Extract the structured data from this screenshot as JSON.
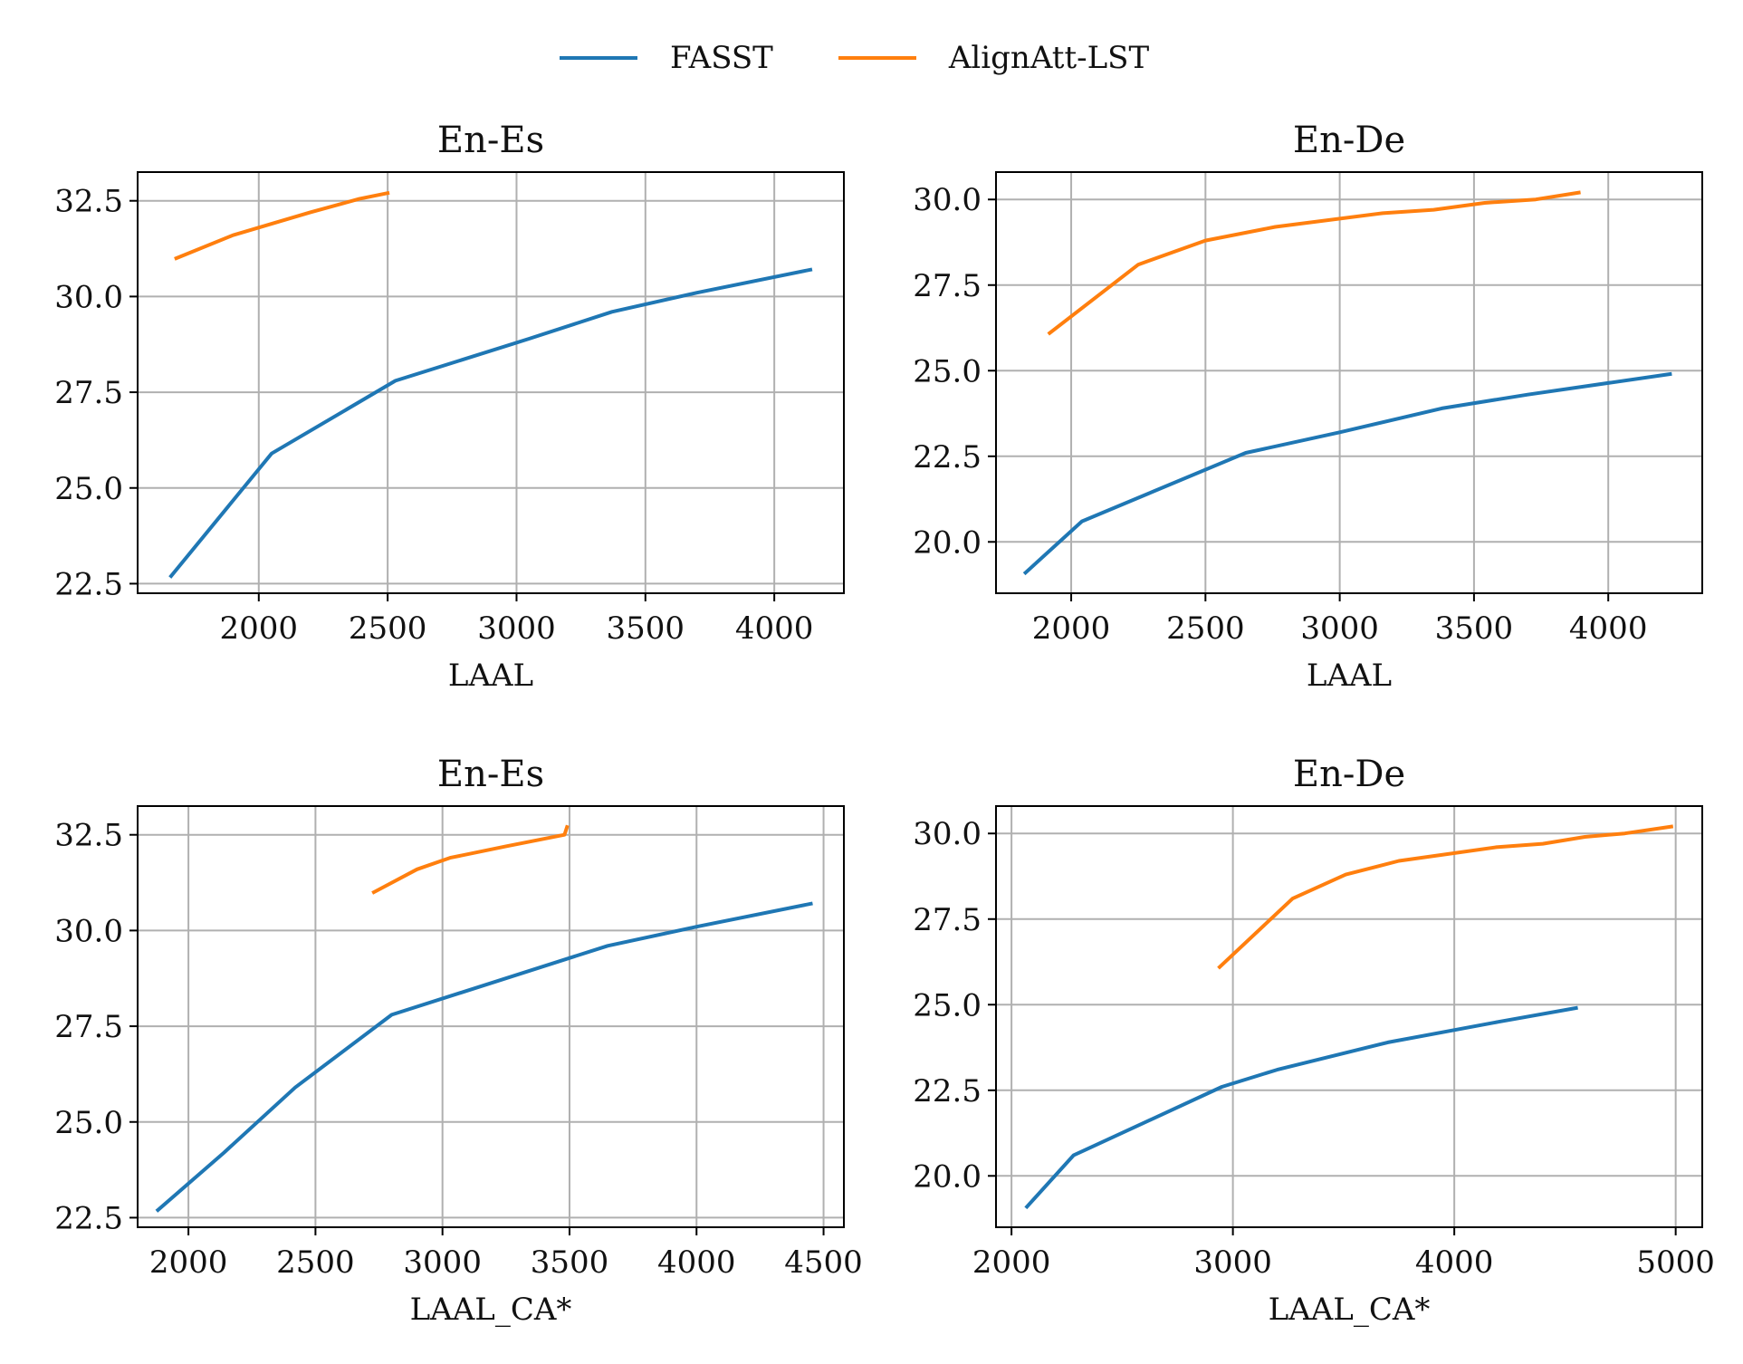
{
  "legend": {
    "fasst_label": "FASST",
    "alignatt_label": "AlignAtt-LST",
    "fasst_color": "#1f77b4",
    "alignatt_color": "#ff7f0e"
  },
  "chart_data": [
    {
      "type": "line",
      "title": "En-Es",
      "xlabel": "LAAL",
      "ylabel": "",
      "xlim": [
        1530,
        4270
      ],
      "ylim": [
        22.25,
        33.25
      ],
      "xticks": [
        2000,
        2500,
        3000,
        3500,
        4000
      ],
      "yticks": [
        22.5,
        25.0,
        27.5,
        30.0,
        32.5
      ],
      "grid": true,
      "series": [
        {
          "name": "FASST",
          "color": "#1f77b4",
          "x": [
            1660,
            2050,
            2530,
            3050,
            3370,
            3700,
            4140
          ],
          "y": [
            22.7,
            25.9,
            27.8,
            28.9,
            29.6,
            30.1,
            30.7
          ]
        },
        {
          "name": "AlignAtt-LST",
          "color": "#ff7f0e",
          "x": [
            1680,
            1900,
            2050,
            2200,
            2390,
            2500
          ],
          "y": [
            31.0,
            31.6,
            31.9,
            32.2,
            32.55,
            32.7
          ]
        }
      ]
    },
    {
      "type": "line",
      "title": "En-De",
      "xlabel": "LAAL",
      "ylabel": "",
      "xlim": [
        1720,
        4350
      ],
      "ylim": [
        18.5,
        30.8
      ],
      "xticks": [
        2000,
        2500,
        3000,
        3500,
        4000
      ],
      "yticks": [
        20.0,
        22.5,
        25.0,
        27.5,
        30.0
      ],
      "grid": true,
      "series": [
        {
          "name": "FASST",
          "color": "#1f77b4",
          "x": [
            1830,
            2040,
            2650,
            3000,
            3380,
            3700,
            4230
          ],
          "y": [
            19.1,
            20.6,
            22.6,
            23.2,
            23.9,
            24.3,
            24.9
          ]
        },
        {
          "name": "AlignAtt-LST",
          "color": "#ff7f0e",
          "x": [
            1920,
            2250,
            2500,
            2760,
            3160,
            3350,
            3540,
            3730,
            3890
          ],
          "y": [
            26.1,
            28.1,
            28.8,
            29.2,
            29.6,
            29.7,
            29.9,
            30.0,
            30.2
          ]
        }
      ]
    },
    {
      "type": "line",
      "title": "En-Es",
      "xlabel": "LAAL_CA*",
      "ylabel": "",
      "xlim": [
        1800,
        4580
      ],
      "ylim": [
        22.25,
        33.25
      ],
      "xticks": [
        2000,
        2500,
        3000,
        3500,
        4000,
        4500
      ],
      "yticks": [
        22.5,
        25.0,
        27.5,
        30.0,
        32.5
      ],
      "grid": true,
      "series": [
        {
          "name": "FASST",
          "color": "#1f77b4",
          "x": [
            1880,
            2140,
            2420,
            2800,
            3650,
            4000,
            4450
          ],
          "y": [
            22.7,
            24.2,
            25.9,
            27.8,
            29.6,
            30.1,
            30.7
          ]
        },
        {
          "name": "AlignAtt-LST",
          "color": "#ff7f0e",
          "x": [
            2730,
            2900,
            3030,
            3250,
            3480,
            3490
          ],
          "y": [
            31.0,
            31.6,
            31.9,
            32.2,
            32.5,
            32.7
          ]
        }
      ]
    },
    {
      "type": "line",
      "title": "En-De",
      "xlabel": "LAAL_CA*",
      "ylabel": "",
      "xlim": [
        1930,
        5120
      ],
      "ylim": [
        18.5,
        30.8
      ],
      "xticks": [
        2000,
        3000,
        4000,
        5000
      ],
      "yticks": [
        20.0,
        22.5,
        25.0,
        27.5,
        30.0
      ],
      "grid": true,
      "series": [
        {
          "name": "FASST",
          "color": "#1f77b4",
          "x": [
            2070,
            2280,
            2950,
            3200,
            3700,
            4200,
            4550
          ],
          "y": [
            19.1,
            20.6,
            22.6,
            23.1,
            23.9,
            24.5,
            24.9
          ]
        },
        {
          "name": "AlignAtt-LST",
          "color": "#ff7f0e",
          "x": [
            2940,
            3270,
            3510,
            3750,
            4190,
            4400,
            4590,
            4770,
            4980
          ],
          "y": [
            26.1,
            28.1,
            28.8,
            29.2,
            29.6,
            29.7,
            29.9,
            30.0,
            30.2
          ]
        }
      ]
    }
  ]
}
